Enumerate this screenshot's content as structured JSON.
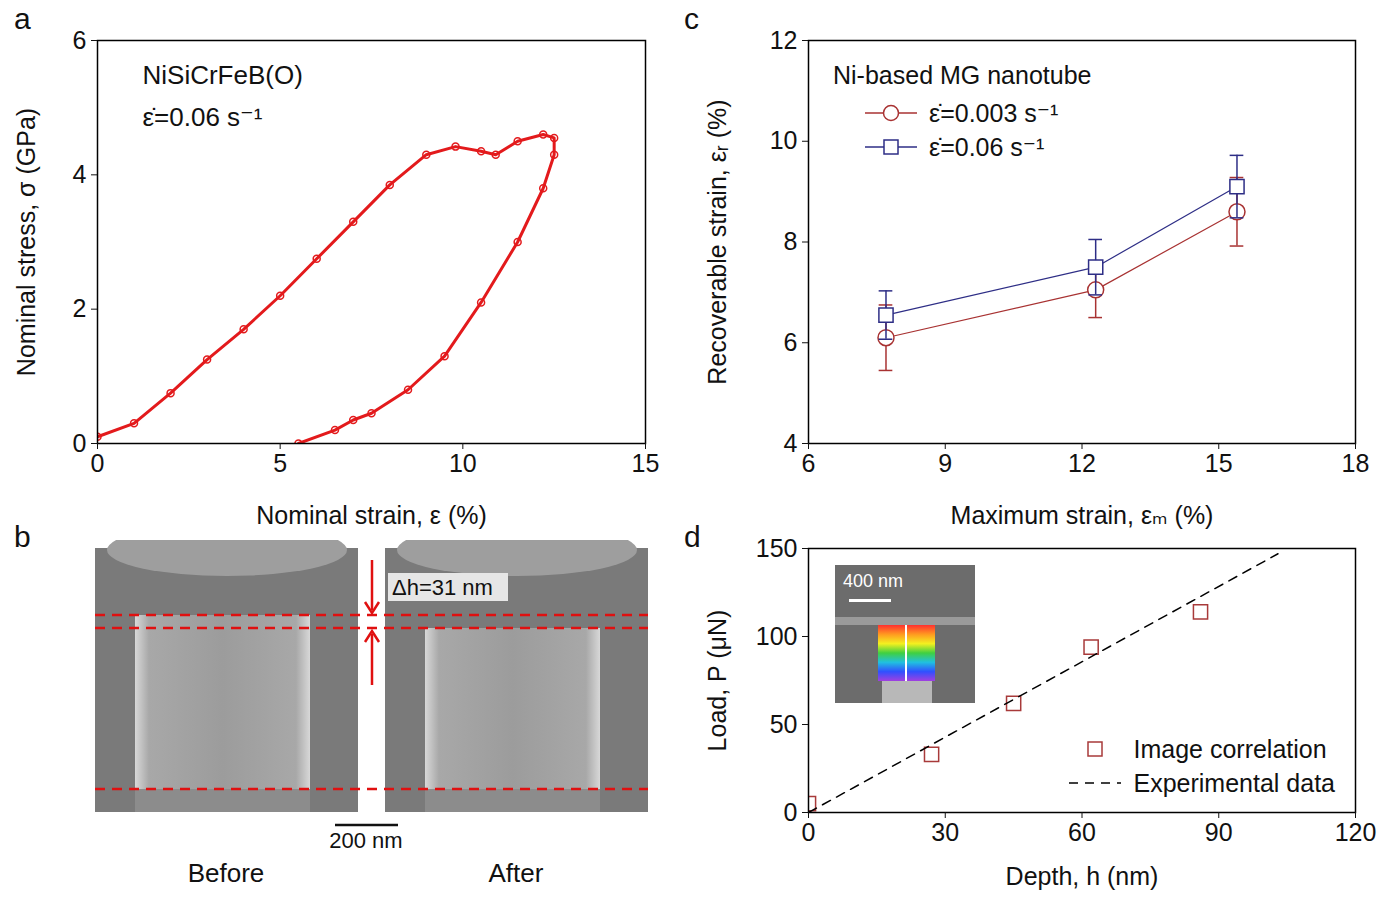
{
  "chart_data": [
    {
      "panel": "a",
      "type": "line",
      "marker": "circle",
      "color": "#e31a1c",
      "x_label": "Nominal strain, ε (%)",
      "y_label": "Nominal stress, σ (GPa)",
      "xlim": [
        0,
        15
      ],
      "ylim": [
        0,
        6
      ],
      "xticks": [
        0,
        5,
        10,
        15
      ],
      "yticks": [
        0,
        2,
        4,
        6
      ],
      "grid": false,
      "annotations": [
        "NiSiCrFeB(O)",
        "ε̇=0.06 s⁻¹"
      ],
      "x": [
        0,
        1,
        2,
        3,
        4,
        5,
        6,
        7,
        8,
        9,
        9.8,
        10.5,
        10.9,
        11.5,
        12.2,
        12.5,
        12.5,
        12.2,
        11.5,
        10.5,
        9.5,
        8.5,
        7.5,
        7,
        6.5,
        5.5
      ],
      "values": [
        0.1,
        0.3,
        0.75,
        1.25,
        1.7,
        2.2,
        2.75,
        3.3,
        3.85,
        4.3,
        4.42,
        4.35,
        4.3,
        4.5,
        4.6,
        4.55,
        4.3,
        3.8,
        3.0,
        2.1,
        1.3,
        0.8,
        0.45,
        0.35,
        0.2,
        0
      ]
    },
    {
      "panel": "c",
      "type": "line",
      "legend": "upper left",
      "legend_title": "Ni-based MG nanotube",
      "x_label": "Maximum strain, εₘ (%)",
      "y_label": "Recoverable strain, εᵣ (%)",
      "xlim": [
        6,
        18
      ],
      "ylim": [
        4,
        12
      ],
      "xticks": [
        6,
        9,
        12,
        15,
        18
      ],
      "yticks": [
        4,
        6,
        8,
        10,
        12
      ],
      "grid": false,
      "series": [
        {
          "name": "ε̇=0.003 s⁻¹",
          "color": "#a83232",
          "marker": "circle",
          "x": [
            7.7,
            12.3,
            15.4
          ],
          "values": [
            6.1,
            7.05,
            8.6
          ],
          "errors": [
            0.65,
            0.55,
            0.68
          ]
        },
        {
          "name": "ε̇=0.06 s⁻¹",
          "color": "#2e2e86",
          "marker": "square",
          "x": [
            7.7,
            12.3,
            15.4
          ],
          "values": [
            6.55,
            7.5,
            9.1
          ],
          "errors": [
            0.48,
            0.55,
            0.62
          ]
        }
      ]
    },
    {
      "panel": "d",
      "type": "scatter",
      "legend": "lower right",
      "x_label": "Depth, h (nm)",
      "y_label": "Load, P (μN)",
      "xlim": [
        0,
        120
      ],
      "ylim": [
        0,
        150
      ],
      "xticks": [
        0,
        30,
        60,
        90,
        120
      ],
      "yticks": [
        0,
        50,
        100,
        150
      ],
      "grid": false,
      "inset": {
        "scale_bar": "400 nm"
      },
      "series": [
        {
          "name": "Image correlation",
          "type": "scatter",
          "marker": "square",
          "color": "#a83a3a",
          "x": [
            0,
            27,
            45,
            62,
            86
          ],
          "values": [
            5,
            33,
            62,
            94,
            114
          ]
        },
        {
          "name": "Experimental data",
          "type": "line",
          "line_style": "dashed",
          "color": "#000000",
          "x": [
            0,
            103
          ],
          "values": [
            0,
            147
          ]
        }
      ]
    }
  ],
  "image_panel": {
    "panel": "b",
    "annotation": "Δh=31 nm",
    "scale_bar": "200 nm",
    "captions": [
      "Before",
      "After"
    ]
  }
}
